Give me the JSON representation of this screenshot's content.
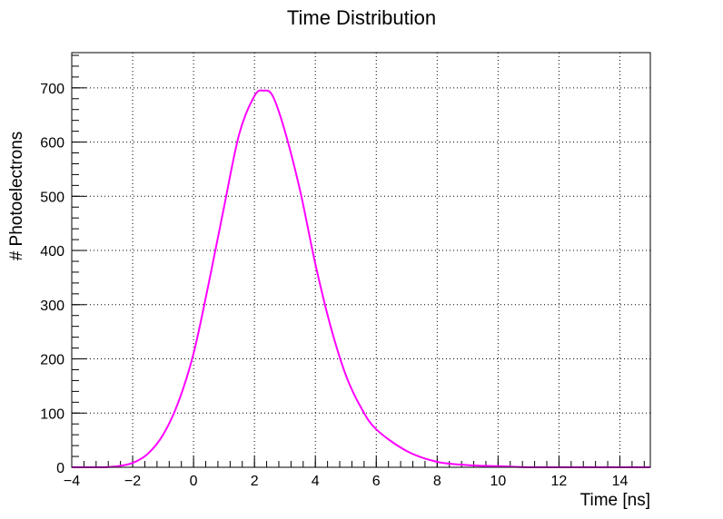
{
  "chart_data": {
    "type": "line",
    "title": "Time Distribution",
    "xlabel": "Time [ns]",
    "ylabel": "# Photoelectrons",
    "xlim": [
      -4,
      15
    ],
    "ylim": [
      0,
      765
    ],
    "grid": true,
    "x_ticks": [
      -4,
      -2,
      0,
      2,
      4,
      6,
      8,
      10,
      12,
      14
    ],
    "x_tick_labels": [
      "−4",
      "−2",
      "0",
      "2",
      "4",
      "6",
      "8",
      "10",
      "12",
      "14"
    ],
    "y_ticks": [
      0,
      100,
      200,
      300,
      400,
      500,
      600,
      700
    ],
    "y_tick_labels": [
      "0",
      "100",
      "200",
      "300",
      "400",
      "500",
      "600",
      "700"
    ],
    "line_color": "#ff00ff",
    "series": [
      {
        "x": [
          -4,
          -3,
          -2.5,
          -2,
          -1.5,
          -1,
          -0.5,
          0,
          0.5,
          1,
          1.5,
          2,
          2.3,
          2.6,
          3,
          3.5,
          4,
          4.5,
          5,
          5.5,
          6,
          7,
          8,
          9,
          10,
          11,
          12,
          13,
          14,
          15
        ],
        "y": [
          0,
          0,
          2,
          8,
          25,
          60,
          120,
          210,
          340,
          480,
          615,
          685,
          695,
          685,
          620,
          510,
          375,
          260,
          170,
          110,
          70,
          30,
          10,
          4,
          2,
          0,
          0,
          0,
          0,
          0
        ]
      }
    ]
  }
}
